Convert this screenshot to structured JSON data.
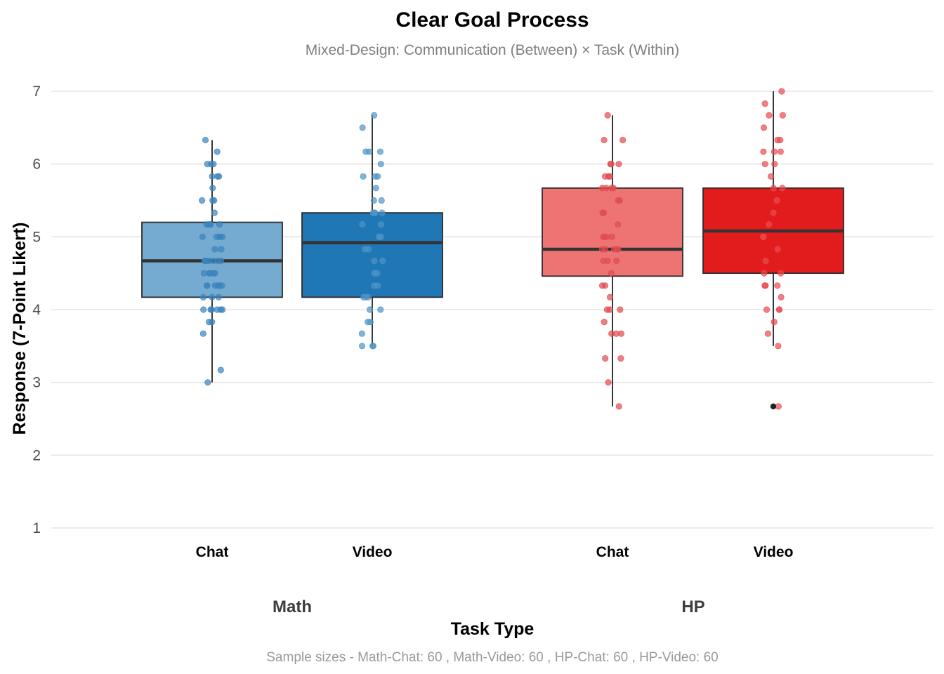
{
  "chart_data": {
    "type": "box",
    "title": "Clear Goal Process",
    "subtitle": "Mixed-Design: Communication (Between) × Task (Within)",
    "xlabel": "Task Type",
    "ylabel": "Response (7-Point Likert)",
    "caption": "Sample sizes - Math-Chat: 60 , Math-Video: 60 , HP-Chat: 60 , HP-Video: 60",
    "ylim": [
      1,
      7
    ],
    "yticks": [
      "1",
      "2",
      "3",
      "4",
      "5",
      "6",
      "7"
    ],
    "grid": "horizontal",
    "facets": [
      {
        "label": "Math",
        "groups": [
          {
            "label": "Chat",
            "color": "#75aad1",
            "point_color": "#3a83be",
            "stats": {
              "min": 3.0,
              "q1": 4.17,
              "median": 4.67,
              "q3": 5.2,
              "max": 6.33
            },
            "points": [
              6.33,
              6.17,
              6.0,
              6.0,
              6.0,
              5.83,
              5.83,
              5.83,
              5.67,
              5.5,
              5.5,
              5.5,
              5.33,
              5.17,
              5.17,
              5.17,
              5.17,
              5.17,
              5.0,
              5.0,
              5.0,
              5.0,
              5.0,
              4.83,
              4.83,
              4.67,
              4.67,
              4.67,
              4.67,
              4.67,
              4.67,
              4.67,
              4.5,
              4.5,
              4.5,
              4.5,
              4.5,
              4.33,
              4.33,
              4.33,
              4.33,
              4.33,
              4.33,
              4.17,
              4.17,
              4.17,
              4.0,
              4.0,
              4.0,
              4.0,
              4.0,
              4.0,
              3.83,
              3.83,
              3.67,
              3.17,
              3.0
            ]
          },
          {
            "label": "Video",
            "color": "#2077b5",
            "point_color": "#4e94c8",
            "stats": {
              "min": 3.5,
              "q1": 4.17,
              "median": 4.92,
              "q3": 5.33,
              "max": 6.67
            },
            "points": [
              6.67,
              6.5,
              6.17,
              6.17,
              6.17,
              6.0,
              5.83,
              5.83,
              5.83,
              5.67,
              5.5,
              5.5,
              5.33,
              5.33,
              5.33,
              5.33,
              5.17,
              5.17,
              5.0,
              5.0,
              4.83,
              4.83,
              4.67,
              4.67,
              4.5,
              4.5,
              4.33,
              4.33,
              4.17,
              4.17,
              4.17,
              4.0,
              4.0,
              3.83,
              3.83,
              3.67,
              3.5,
              3.5,
              3.5
            ]
          }
        ]
      },
      {
        "label": "HP",
        "groups": [
          {
            "label": "Chat",
            "color": "#ee7474",
            "point_color": "#e04c50",
            "stats": {
              "min": 2.67,
              "q1": 4.46,
              "median": 4.83,
              "q3": 5.67,
              "max": 6.67
            },
            "points": [
              6.67,
              6.33,
              6.33,
              6.0,
              6.0,
              6.0,
              5.83,
              5.83,
              5.83,
              5.67,
              5.67,
              5.67,
              5.67,
              5.5,
              5.5,
              5.33,
              5.33,
              5.17,
              5.0,
              5.0,
              5.0,
              5.0,
              4.83,
              4.83,
              4.83,
              4.83,
              4.83,
              4.67,
              4.67,
              4.67,
              4.5,
              4.33,
              4.33,
              4.17,
              4.0,
              4.0,
              4.0,
              3.83,
              3.67,
              3.67,
              3.67,
              3.33,
              3.33,
              3.0,
              2.67
            ]
          },
          {
            "label": "Video",
            "color": "#e21c1c",
            "point_color": "#ea4a51",
            "stats": {
              "min": 3.5,
              "q1": 4.5,
              "median": 5.08,
              "q3": 5.67,
              "max": 7.0
            },
            "points": [
              7.0,
              6.83,
              6.67,
              6.67,
              6.5,
              6.33,
              6.33,
              6.17,
              6.17,
              6.17,
              6.0,
              6.0,
              5.83,
              5.67,
              5.67,
              5.5,
              5.33,
              5.17,
              5.0,
              5.0,
              4.83,
              4.67,
              4.5,
              4.5,
              4.33,
              4.33,
              4.33,
              4.17,
              4.0,
              4.0,
              4.0,
              3.83,
              3.67,
              3.5,
              2.67
            ],
            "outliers": [
              2.67
            ]
          }
        ]
      }
    ]
  }
}
